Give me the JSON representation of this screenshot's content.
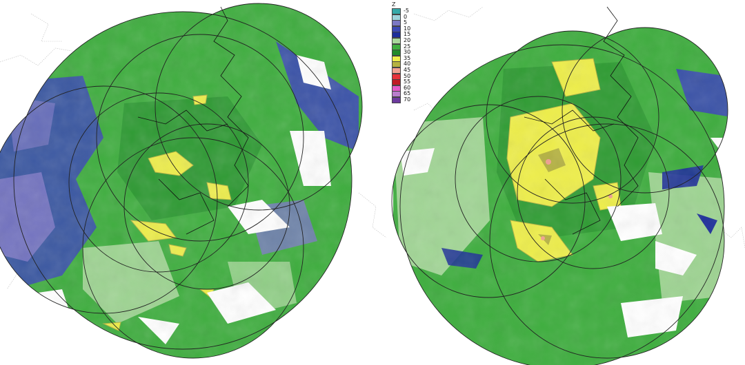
{
  "legend": {
    "title": "Z",
    "entries": [
      {
        "label": "-5",
        "color": "#36a9a9"
      },
      {
        "label": "0",
        "color": "#9ed3dc"
      },
      {
        "label": "5",
        "color": "#7b78c4"
      },
      {
        "label": "10",
        "color": "#3b49b4"
      },
      {
        "label": "15",
        "color": "#1d2e9a"
      },
      {
        "label": "20",
        "color": "#a8d89b"
      },
      {
        "label": "25",
        "color": "#3fae3f"
      },
      {
        "label": "30",
        "color": "#218a2a"
      },
      {
        "label": "35",
        "color": "#eeee4a"
      },
      {
        "label": "40",
        "color": "#b5b240"
      },
      {
        "label": "45",
        "color": "#f2a090"
      },
      {
        "label": "50",
        "color": "#e8323a"
      },
      {
        "label": "55",
        "color": "#c01a25"
      },
      {
        "label": "60",
        "color": "#e35ac8"
      },
      {
        "label": "65",
        "color": "#b97ecc"
      },
      {
        "label": "70",
        "color": "#6d3a9e"
      }
    ]
  },
  "maps": [
    {
      "name": "left-radar-mosaic"
    },
    {
      "name": "right-radar-mosaic"
    }
  ]
}
